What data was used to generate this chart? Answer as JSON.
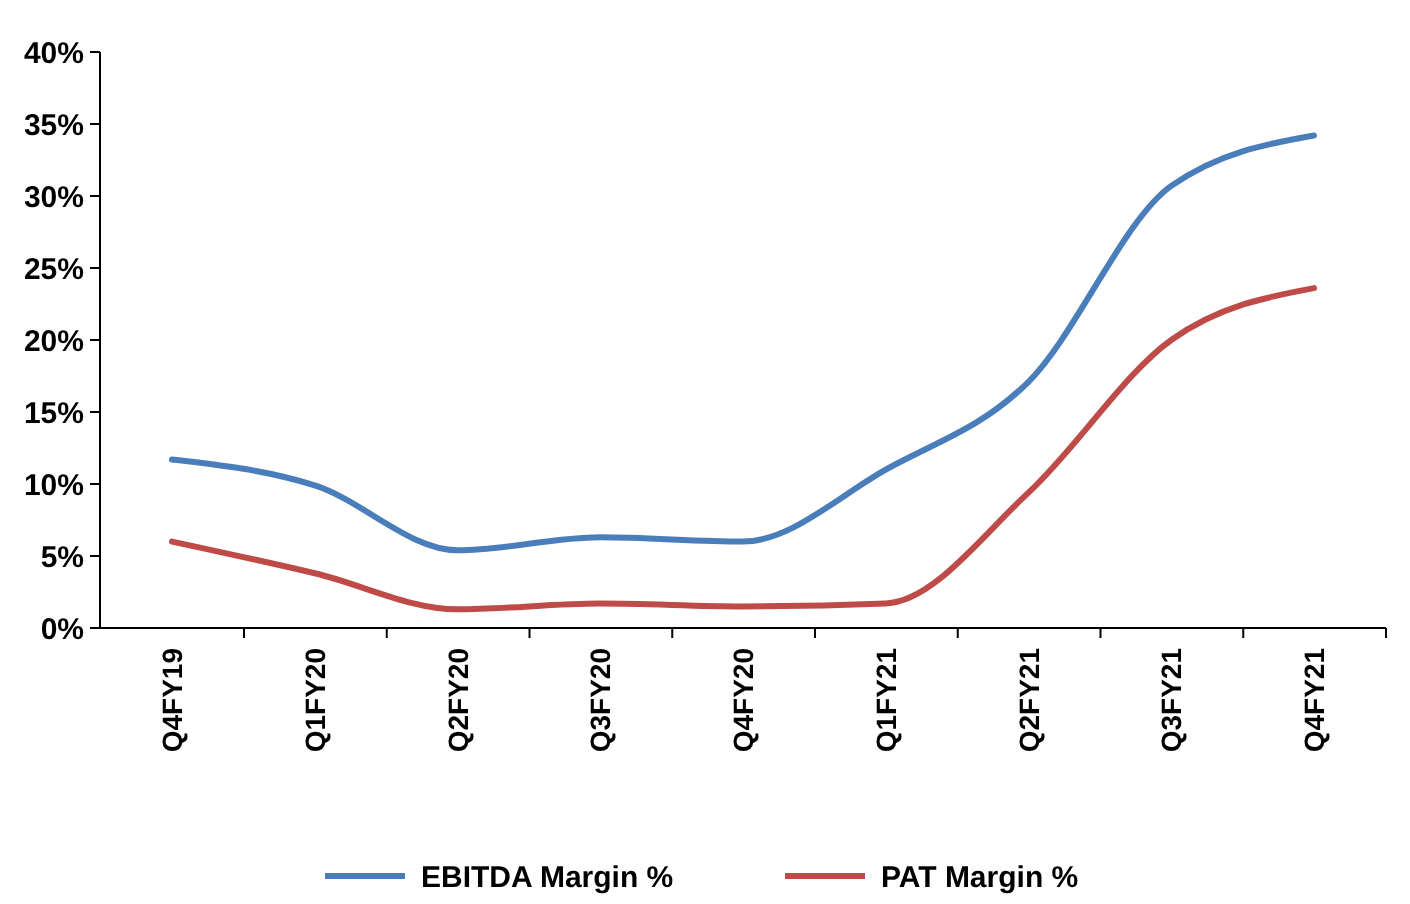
{
  "chart_data": {
    "type": "line",
    "categories": [
      "Q4FY19",
      "Q1FY20",
      "Q2FY20",
      "Q3FY20",
      "Q4FY20",
      "Q1FY21",
      "Q2FY21",
      "Q3FY21",
      "Q4FY21"
    ],
    "series": [
      {
        "name": "EBITDA Margin %",
        "color": "#4a7ebb",
        "values": [
          11.7,
          9.9,
          5.4,
          6.3,
          6.0,
          11.0,
          17.1,
          30.7,
          34.2
        ]
      },
      {
        "name": "PAT Margin %",
        "color": "#be4b48",
        "values": [
          6.0,
          3.8,
          1.3,
          1.7,
          1.5,
          1.7,
          9.4,
          20.0,
          23.6
        ]
      }
    ],
    "ylim": [
      0,
      40
    ],
    "yticks": [
      {
        "value": 0,
        "label": "0%"
      },
      {
        "value": 5,
        "label": "5%"
      },
      {
        "value": 10,
        "label": "10%"
      },
      {
        "value": 15,
        "label": "15%"
      },
      {
        "value": 20,
        "label": "20%"
      },
      {
        "value": 25,
        "label": "25%"
      },
      {
        "value": 30,
        "label": "30%"
      },
      {
        "value": 35,
        "label": "35%"
      },
      {
        "value": 40,
        "label": "40%"
      }
    ],
    "grid": false,
    "legend": "bottom",
    "marker": "none",
    "line_style": "solid"
  }
}
